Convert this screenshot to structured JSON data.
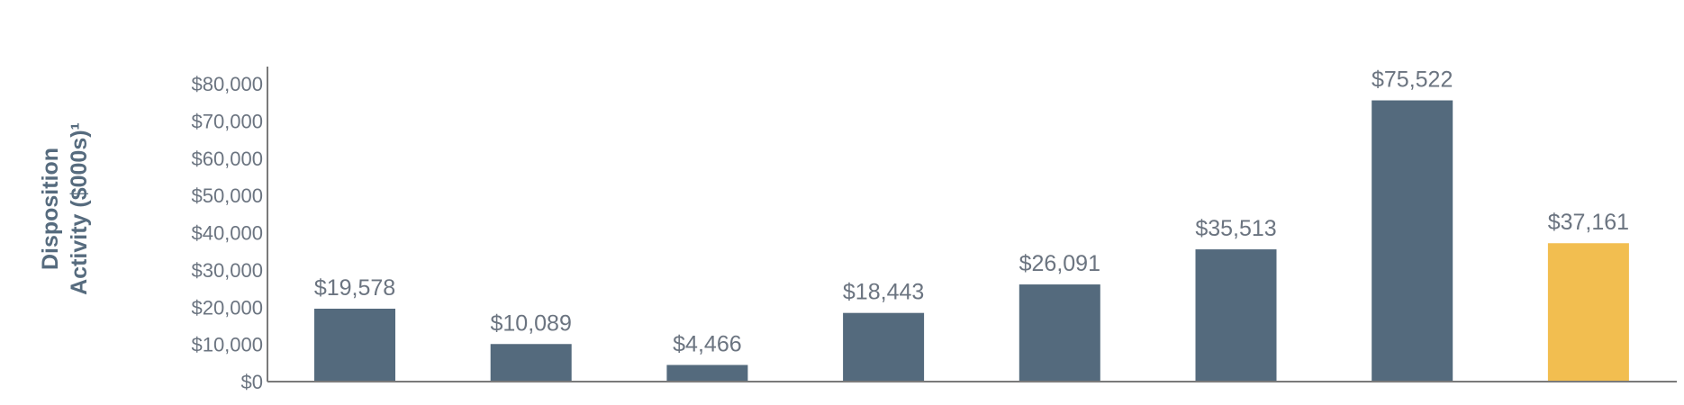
{
  "chart_data": {
    "type": "bar",
    "ylabel_lines": [
      "Disposition",
      "Activity ($000s)¹"
    ],
    "xlabel": "",
    "ylim": [
      0,
      80000
    ],
    "y_ticks": [
      0,
      10000,
      20000,
      30000,
      40000,
      50000,
      60000,
      70000,
      80000
    ],
    "y_tick_labels": [
      "$0",
      "$10,000",
      "$20,000",
      "$30,000",
      "$40,000",
      "$50,000",
      "$60,000",
      "$70,000",
      "$80,000"
    ],
    "values": [
      19578,
      10089,
      4466,
      18443,
      26091,
      35513,
      75522,
      37161
    ],
    "data_labels": [
      "$19,578",
      "$10,089",
      "$4,466",
      "$18,443",
      "$26,091",
      "$35,513",
      "$75,522",
      "$37,161"
    ],
    "bar_colors": [
      "#546a7d",
      "#546a7d",
      "#546a7d",
      "#546a7d",
      "#546a7d",
      "#546a7d",
      "#546a7d",
      "#f2be50"
    ],
    "grid": false,
    "legend": "none"
  }
}
